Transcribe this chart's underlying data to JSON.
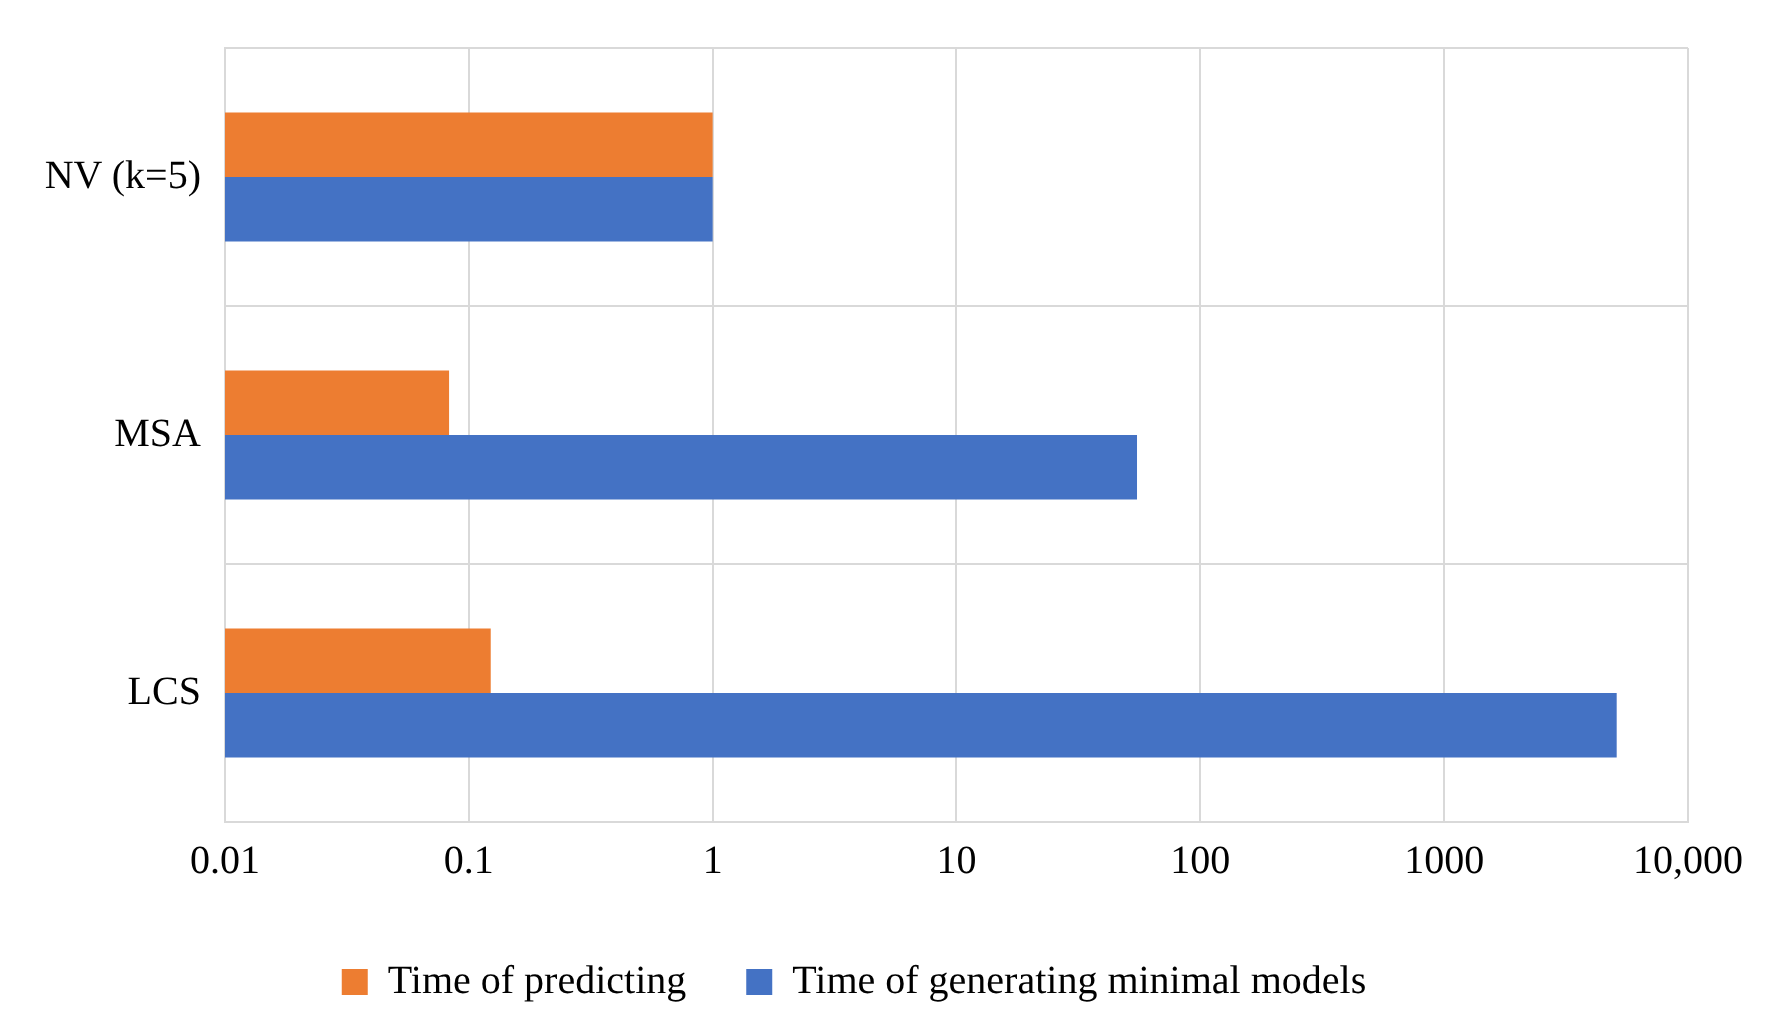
{
  "chart_data": {
    "type": "bar",
    "orientation": "horizontal",
    "categories": [
      "NV (k=5)",
      "MSA",
      "LCS"
    ],
    "series": [
      {
        "name": "Time of predicting",
        "color": "#ed7d31",
        "values": [
          1,
          0.083,
          0.123
        ]
      },
      {
        "name": "Time of generating minimal models",
        "color": "#4472c4",
        "values": [
          1,
          55,
          5100
        ]
      }
    ],
    "log": "x",
    "xlim": [
      0.01,
      10000
    ],
    "xticks": [
      0.01,
      0.1,
      1,
      10,
      100,
      1000,
      {
        "value": 10000,
        "label": "10,000"
      }
    ],
    "grid": true,
    "legend": "bottom"
  }
}
